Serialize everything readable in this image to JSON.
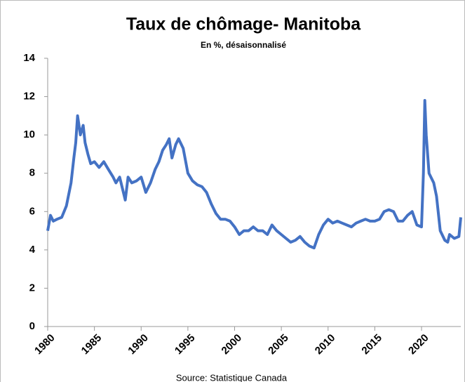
{
  "chart_data": {
    "type": "line",
    "title": "Taux de chômage- Manitoba",
    "subtitle": "En %, désaisonnalisé",
    "source": "Source: Statistique Canada",
    "x": [
      1980.0,
      1980.3,
      1980.6,
      1981.0,
      1981.5,
      1982.0,
      1982.5,
      1982.8,
      1983.0,
      1983.2,
      1983.5,
      1983.8,
      1984.0,
      1984.3,
      1984.6,
      1985.0,
      1985.5,
      1986.0,
      1986.5,
      1987.0,
      1987.3,
      1987.7,
      1988.0,
      1988.3,
      1988.6,
      1989.0,
      1989.5,
      1990.0,
      1990.5,
      1991.0,
      1991.5,
      1991.9,
      1992.3,
      1992.7,
      1993.0,
      1993.3,
      1993.7,
      1994.0,
      1994.5,
      1995.0,
      1995.5,
      1996.0,
      1996.5,
      1997.0,
      1997.5,
      1998.0,
      1998.5,
      1999.0,
      1999.5,
      2000.0,
      2000.5,
      2001.0,
      2001.5,
      2002.0,
      2002.5,
      2003.0,
      2003.5,
      2004.0,
      2004.5,
      2005.0,
      2005.5,
      2006.0,
      2006.5,
      2007.0,
      2007.5,
      2008.0,
      2008.5,
      2009.0,
      2009.5,
      2010.0,
      2010.5,
      2011.0,
      2011.5,
      2012.0,
      2012.5,
      2013.0,
      2013.5,
      2014.0,
      2014.5,
      2015.0,
      2015.5,
      2016.0,
      2016.5,
      2017.0,
      2017.5,
      2018.0,
      2018.5,
      2019.0,
      2019.5,
      2020.0,
      2020.2,
      2020.35,
      2020.5,
      2020.8,
      2021.0,
      2021.3,
      2021.6,
      2022.0,
      2022.5,
      2022.8,
      2023.0,
      2023.5,
      2024.0,
      2024.2
    ],
    "series": [
      {
        "name": "Taux de chômage",
        "color": "#4472c4",
        "values": [
          5.0,
          5.8,
          5.5,
          5.6,
          5.7,
          6.3,
          7.5,
          8.8,
          9.6,
          11.0,
          10.0,
          10.5,
          9.6,
          9.0,
          8.5,
          8.6,
          8.3,
          8.6,
          8.2,
          7.8,
          7.5,
          7.8,
          7.2,
          6.6,
          7.8,
          7.5,
          7.6,
          7.8,
          7.0,
          7.5,
          8.2,
          8.6,
          9.2,
          9.5,
          9.8,
          8.8,
          9.5,
          9.8,
          9.3,
          8.0,
          7.6,
          7.4,
          7.3,
          7.0,
          6.4,
          5.9,
          5.6,
          5.6,
          5.5,
          5.2,
          4.8,
          5.0,
          5.0,
          5.2,
          5.0,
          5.0,
          4.8,
          5.3,
          5.0,
          4.8,
          4.6,
          4.4,
          4.5,
          4.7,
          4.4,
          4.2,
          4.1,
          4.8,
          5.3,
          5.6,
          5.4,
          5.5,
          5.4,
          5.3,
          5.2,
          5.4,
          5.5,
          5.6,
          5.5,
          5.5,
          5.6,
          6.0,
          6.1,
          6.0,
          5.5,
          5.5,
          5.8,
          6.0,
          5.3,
          5.2,
          8.0,
          11.8,
          10.0,
          8.0,
          7.8,
          7.5,
          6.8,
          5.0,
          4.5,
          4.4,
          4.8,
          4.6,
          4.7,
          5.7
        ]
      }
    ],
    "xlim": [
      1980,
      2024.2
    ],
    "xticks": [
      1980,
      1985,
      1990,
      1995,
      2000,
      2005,
      2010,
      2015,
      2020
    ],
    "ylim": [
      0,
      14
    ],
    "yticks": [
      0,
      2,
      4,
      6,
      8,
      10,
      12,
      14
    ],
    "grid": false
  }
}
